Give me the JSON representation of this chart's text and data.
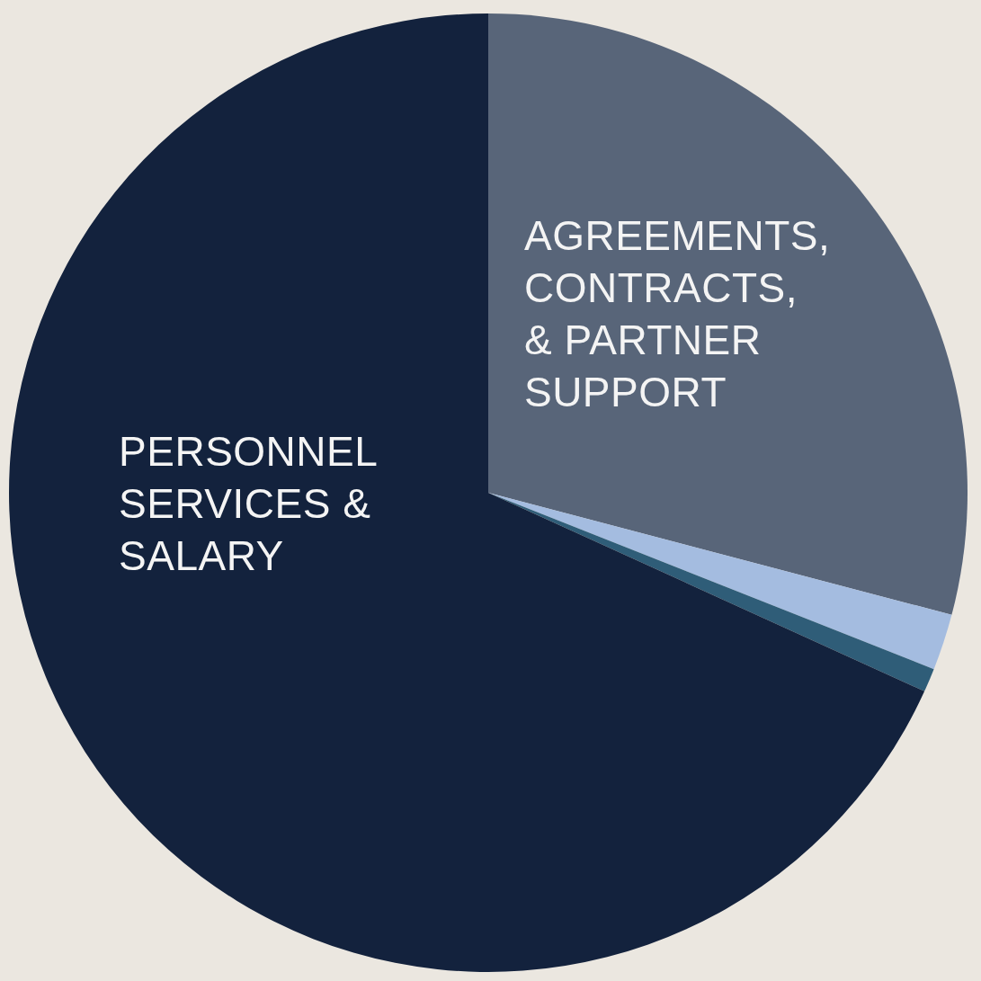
{
  "chart_data": {
    "type": "pie",
    "categories": [
      "AGREEMENTS,\nCONTRACTS,\n& PARTNER\nSUPPORT",
      null,
      null,
      "PERSONNEL\nSERVICES &\nSALARY"
    ],
    "values": [
      29.1,
      1.9,
      0.8,
      68.2
    ],
    "colors": [
      "#586579",
      "#a4bce0",
      "#2f5d78",
      "#13223d"
    ]
  }
}
